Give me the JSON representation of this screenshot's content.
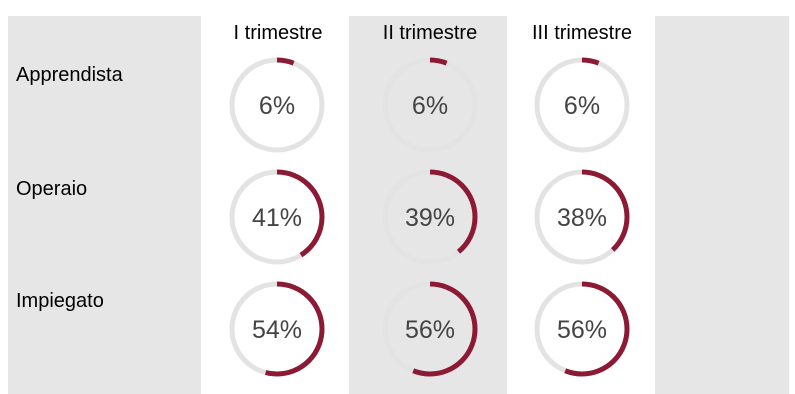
{
  "chart_data": {
    "type": "donut-grid",
    "columns": [
      "I trimestre",
      "II trimestre",
      "III trimestre"
    ],
    "rows": [
      "Apprendista",
      "Operaio",
      "Impiegato"
    ],
    "values": [
      [
        6,
        6,
        6
      ],
      [
        41,
        39,
        38
      ],
      [
        54,
        56,
        56
      ]
    ],
    "labels": [
      [
        "6%",
        "6%",
        "6%"
      ],
      [
        "41%",
        "39%",
        "38%"
      ],
      [
        "54%",
        "56%",
        "56%"
      ]
    ],
    "unit": "%",
    "max": 100
  },
  "colors": {
    "accent": "#8c1a35",
    "track": "#e3e3e3",
    "panel": "#e6e6e6",
    "band": "#ffffff",
    "text": "#444444"
  }
}
